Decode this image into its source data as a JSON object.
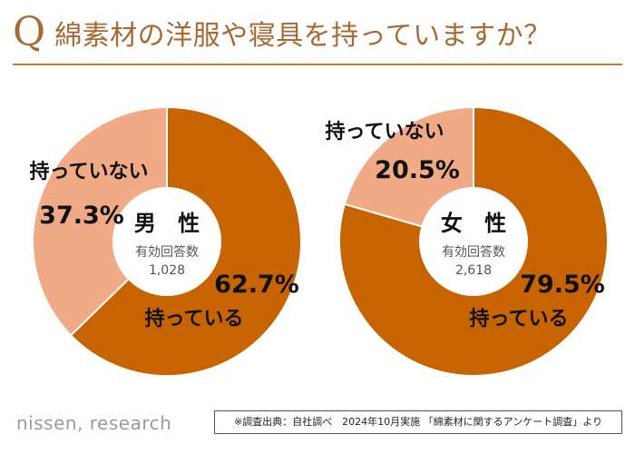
{
  "title": {
    "q_mark": "Q",
    "text": "綿素材の洋服や寝具を持っていますか？"
  },
  "colors": {
    "have": "#c86400",
    "not_have": "#f1aa86",
    "accent": "#a86a32"
  },
  "chart_data": [
    {
      "type": "pie",
      "title": "男 性",
      "center_label": "有効回答数",
      "respondents": "1,028",
      "slices": [
        {
          "label": "持っている",
          "value": 62.7,
          "value_label": "62.7%"
        },
        {
          "label": "持っていない",
          "value": 37.3,
          "value_label": "37.3%"
        }
      ]
    },
    {
      "type": "pie",
      "title": "女 性",
      "center_label": "有効回答数",
      "respondents": "2,618",
      "slices": [
        {
          "label": "持っている",
          "value": 79.5,
          "value_label": "79.5%"
        },
        {
          "label": "持っていない",
          "value": 20.5,
          "value_label": "20.5%"
        }
      ]
    }
  ],
  "footer": {
    "brand": "nissen, research",
    "source": "※調査出典：自社調べ　2024年10月実施 「綿素材に関するアンケート調査」より"
  }
}
